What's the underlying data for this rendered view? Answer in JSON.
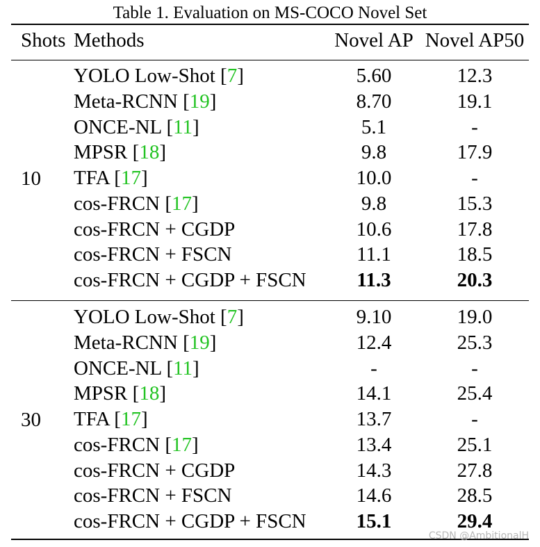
{
  "caption": "Table 1. Evaluation on MS-COCO Novel Set",
  "headers": {
    "shots": "Shots",
    "methods": "Methods",
    "novel_ap": "Novel AP",
    "novel_ap50": "Novel AP50"
  },
  "groups": [
    {
      "shots": "10",
      "rows": [
        {
          "method": "YOLO Low-Shot ",
          "cite": "7",
          "ap": "5.60",
          "ap50": "12.3",
          "bold": false
        },
        {
          "method": "Meta-RCNN ",
          "cite": "19",
          "ap": "8.70",
          "ap50": "19.1",
          "bold": false
        },
        {
          "method": "ONCE-NL ",
          "cite": "11",
          "ap": "5.1",
          "ap50": "-",
          "bold": false
        },
        {
          "method": "MPSR ",
          "cite": "18",
          "ap": "9.8",
          "ap50": "17.9",
          "bold": false
        },
        {
          "method": "TFA ",
          "cite": "17",
          "ap": "10.0",
          "ap50": "-",
          "bold": false
        },
        {
          "method": "cos-FRCN ",
          "cite": "17",
          "ap": "9.8",
          "ap50": "15.3",
          "bold": false
        },
        {
          "method": "cos-FRCN + CGDP",
          "cite": "",
          "ap": "10.6",
          "ap50": "17.8",
          "bold": false
        },
        {
          "method": "cos-FRCN + FSCN",
          "cite": "",
          "ap": "11.1",
          "ap50": "18.5",
          "bold": false
        },
        {
          "method": "cos-FRCN + CGDP + FSCN",
          "cite": "",
          "ap": "11.3",
          "ap50": "20.3",
          "bold": true
        }
      ]
    },
    {
      "shots": "30",
      "rows": [
        {
          "method": "YOLO Low-Shot ",
          "cite": "7",
          "ap": "9.10",
          "ap50": "19.0",
          "bold": false
        },
        {
          "method": "Meta-RCNN ",
          "cite": "19",
          "ap": "12.4",
          "ap50": "25.3",
          "bold": false
        },
        {
          "method": "ONCE-NL ",
          "cite": "11",
          "ap": "-",
          "ap50": "-",
          "bold": false
        },
        {
          "method": "MPSR ",
          "cite": "18",
          "ap": "14.1",
          "ap50": "25.4",
          "bold": false
        },
        {
          "method": "TFA ",
          "cite": "17",
          "ap": "13.7",
          "ap50": "-",
          "bold": false
        },
        {
          "method": "cos-FRCN ",
          "cite": "17",
          "ap": "13.4",
          "ap50": "25.1",
          "bold": false
        },
        {
          "method": "cos-FRCN + CGDP",
          "cite": "",
          "ap": "14.3",
          "ap50": "27.8",
          "bold": false
        },
        {
          "method": "cos-FRCN + FSCN",
          "cite": "",
          "ap": "14.6",
          "ap50": "28.5",
          "bold": false
        },
        {
          "method": "cos-FRCN + CGDP + FSCN",
          "cite": "",
          "ap": "15.1",
          "ap50": "29.4",
          "bold": true
        }
      ]
    }
  ],
  "watermark": "CSDN @AmbitionalH",
  "colors": {
    "citation": "#22c322",
    "text": "#000000",
    "watermark": "#b8b8b8"
  }
}
